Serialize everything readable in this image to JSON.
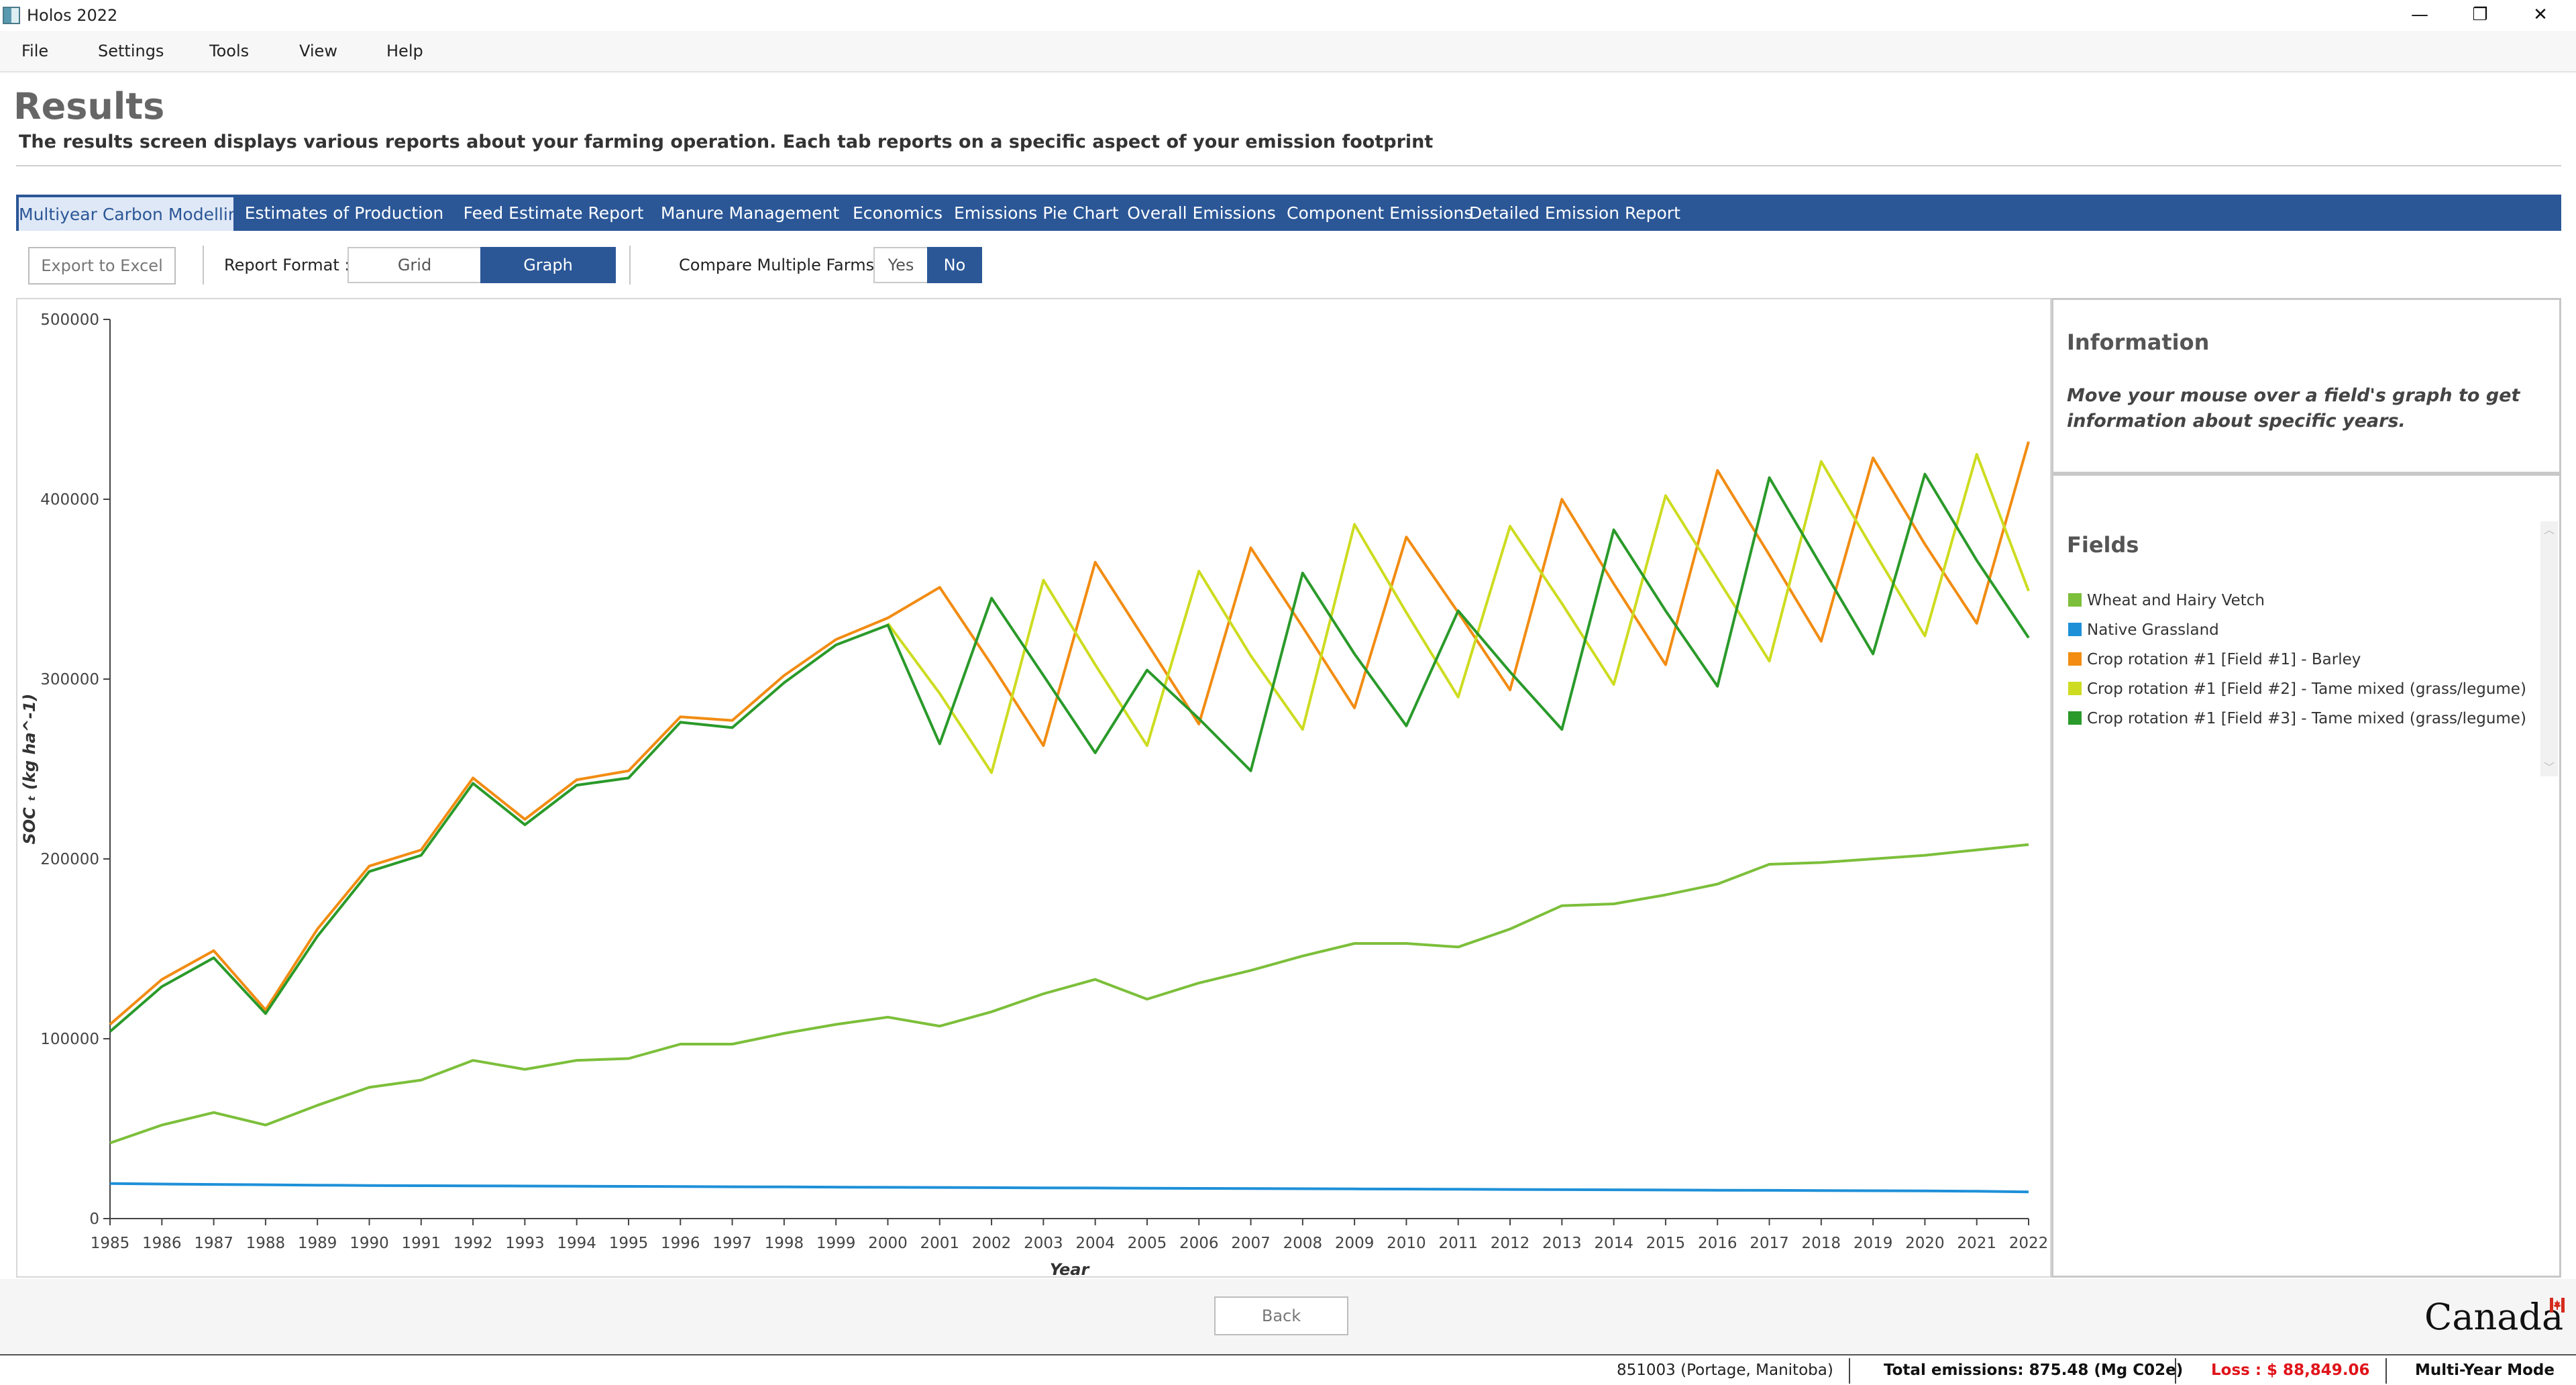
{
  "window": {
    "title": "Holos 2022",
    "minimize": "—",
    "restore": "❐",
    "close": "✕"
  },
  "menu": [
    "File",
    "Settings",
    "Tools",
    "View",
    "Help"
  ],
  "page": {
    "title": "Results",
    "subtitle": "The results screen displays various reports about your farming operation. Each tab reports on a specific aspect of your emission footprint"
  },
  "tabs": [
    "Multiyear Carbon Modelling",
    "Estimates of Production",
    "Feed Estimate Report",
    "Manure Management",
    "Economics",
    "Emissions Pie Chart",
    "Overall Emissions",
    "Component Emissions",
    "Detailed Emission Report"
  ],
  "active_tab": "Multiyear Carbon Modelling",
  "toolbar": {
    "export_label": "Export to Excel",
    "report_format_label": "Report Format :",
    "format_grid": "Grid",
    "format_graph": "Graph",
    "selected_format": "Graph",
    "compare_label": "Compare Multiple Farms :",
    "compare_yes": "Yes",
    "compare_no": "No",
    "selected_compare": "No"
  },
  "info_panel": {
    "title": "Information",
    "text": "Move your mouse over a field's graph to get information about specific years."
  },
  "fields_panel": {
    "title": "Fields",
    "items": [
      {
        "label": "Wheat and Hairy Vetch",
        "color": "#7cbf3a"
      },
      {
        "label": "Native Grassland",
        "color": "#1e90d8"
      },
      {
        "label": "Crop rotation #1 [Field #1] - Barley",
        "color": "#f28c12"
      },
      {
        "label": "Crop rotation #1 [Field #2] - Tame mixed (grass/legume)",
        "color": "#cddc20"
      },
      {
        "label": "Crop rotation #1 [Field #3] - Tame mixed (grass/legume)",
        "color": "#2a9a2a"
      }
    ]
  },
  "chart_data": {
    "type": "line",
    "xlabel": "Year",
    "ylabel": "SOC ₜ  (kg ha^-1)",
    "ylim": [
      0,
      500000
    ],
    "yticks": [
      0,
      100000,
      200000,
      300000,
      400000,
      500000
    ],
    "x": [
      1985,
      1986,
      1987,
      1988,
      1989,
      1990,
      1991,
      1992,
      1993,
      1994,
      1995,
      1996,
      1997,
      1998,
      1999,
      2000,
      2001,
      2002,
      2003,
      2004,
      2005,
      2006,
      2007,
      2008,
      2009,
      2010,
      2011,
      2012,
      2013,
      2014,
      2015,
      2016,
      2017,
      2018,
      2019,
      2020,
      2021,
      2022
    ],
    "grid": false,
    "series": [
      {
        "name": "Wheat and Hairy Vetch",
        "color": "#7cbf3a",
        "values": [
          42000,
          52000,
          59000,
          52000,
          63000,
          73000,
          77000,
          88000,
          83000,
          88000,
          89000,
          97000,
          97000,
          103000,
          108000,
          112000,
          107000,
          115000,
          125000,
          133000,
          122000,
          131000,
          138000,
          146000,
          153000,
          153000,
          151000,
          161000,
          174000,
          175000,
          180000,
          186000,
          197000,
          198000,
          200000,
          202000,
          205000,
          208000
        ]
      },
      {
        "name": "Native Grassland",
        "color": "#1e90d8",
        "values": [
          19500,
          19200,
          19000,
          18800,
          18600,
          18400,
          18300,
          18200,
          18100,
          18000,
          17900,
          17800,
          17700,
          17600,
          17500,
          17400,
          17300,
          17200,
          17100,
          17000,
          16900,
          16800,
          16700,
          16600,
          16500,
          16400,
          16300,
          16200,
          16100,
          16000,
          15900,
          15800,
          15700,
          15600,
          15500,
          15400,
          15200,
          14800
        ]
      },
      {
        "name": "Crop rotation #1 [Field #1] - Barley",
        "color": "#f28c12",
        "values": [
          108000,
          133000,
          149000,
          116000,
          161000,
          196000,
          205000,
          245000,
          222000,
          244000,
          249000,
          279000,
          277000,
          302000,
          322000,
          334000,
          351000,
          308000,
          263000,
          365000,
          320000,
          275000,
          373000,
          329000,
          284000,
          379000,
          337000,
          294000,
          400000,
          353000,
          308000,
          416000,
          369000,
          321000,
          423000,
          375000,
          331000,
          432000
        ]
      },
      {
        "name": "Crop rotation #1 [Field #2] - Tame mixed (grass/legume)",
        "color": "#cddc20",
        "values": [
          null,
          null,
          null,
          null,
          null,
          null,
          null,
          null,
          null,
          null,
          null,
          null,
          null,
          null,
          null,
          331000,
          292000,
          248000,
          355000,
          308000,
          263000,
          360000,
          313000,
          272000,
          386000,
          337000,
          290000,
          385000,
          342000,
          297000,
          402000,
          356000,
          310000,
          421000,
          372000,
          324000,
          425000,
          349000
        ]
      },
      {
        "name": "Crop rotation #1 [Field #3] - Tame mixed (grass/legume)",
        "color": "#2a9a2a",
        "values": [
          104000,
          129000,
          145000,
          114000,
          157000,
          193000,
          202000,
          242000,
          219000,
          241000,
          245000,
          276000,
          273000,
          298000,
          319000,
          330000,
          264000,
          345000,
          302000,
          259000,
          305000,
          278000,
          249000,
          359000,
          314000,
          274000,
          338000,
          304000,
          272000,
          383000,
          338000,
          296000,
          412000,
          363000,
          314000,
          414000,
          366000,
          323000
        ]
      }
    ]
  },
  "bottom": {
    "back_label": "Back",
    "canada_label": "Canada"
  },
  "status": {
    "farm": "851003 (Portage, Manitoba)",
    "total_emissions": "Total emissions: 875.48 (Mg C02e)",
    "loss": "Loss :  $ 88,849.06",
    "mode": "Multi-Year Mode"
  }
}
